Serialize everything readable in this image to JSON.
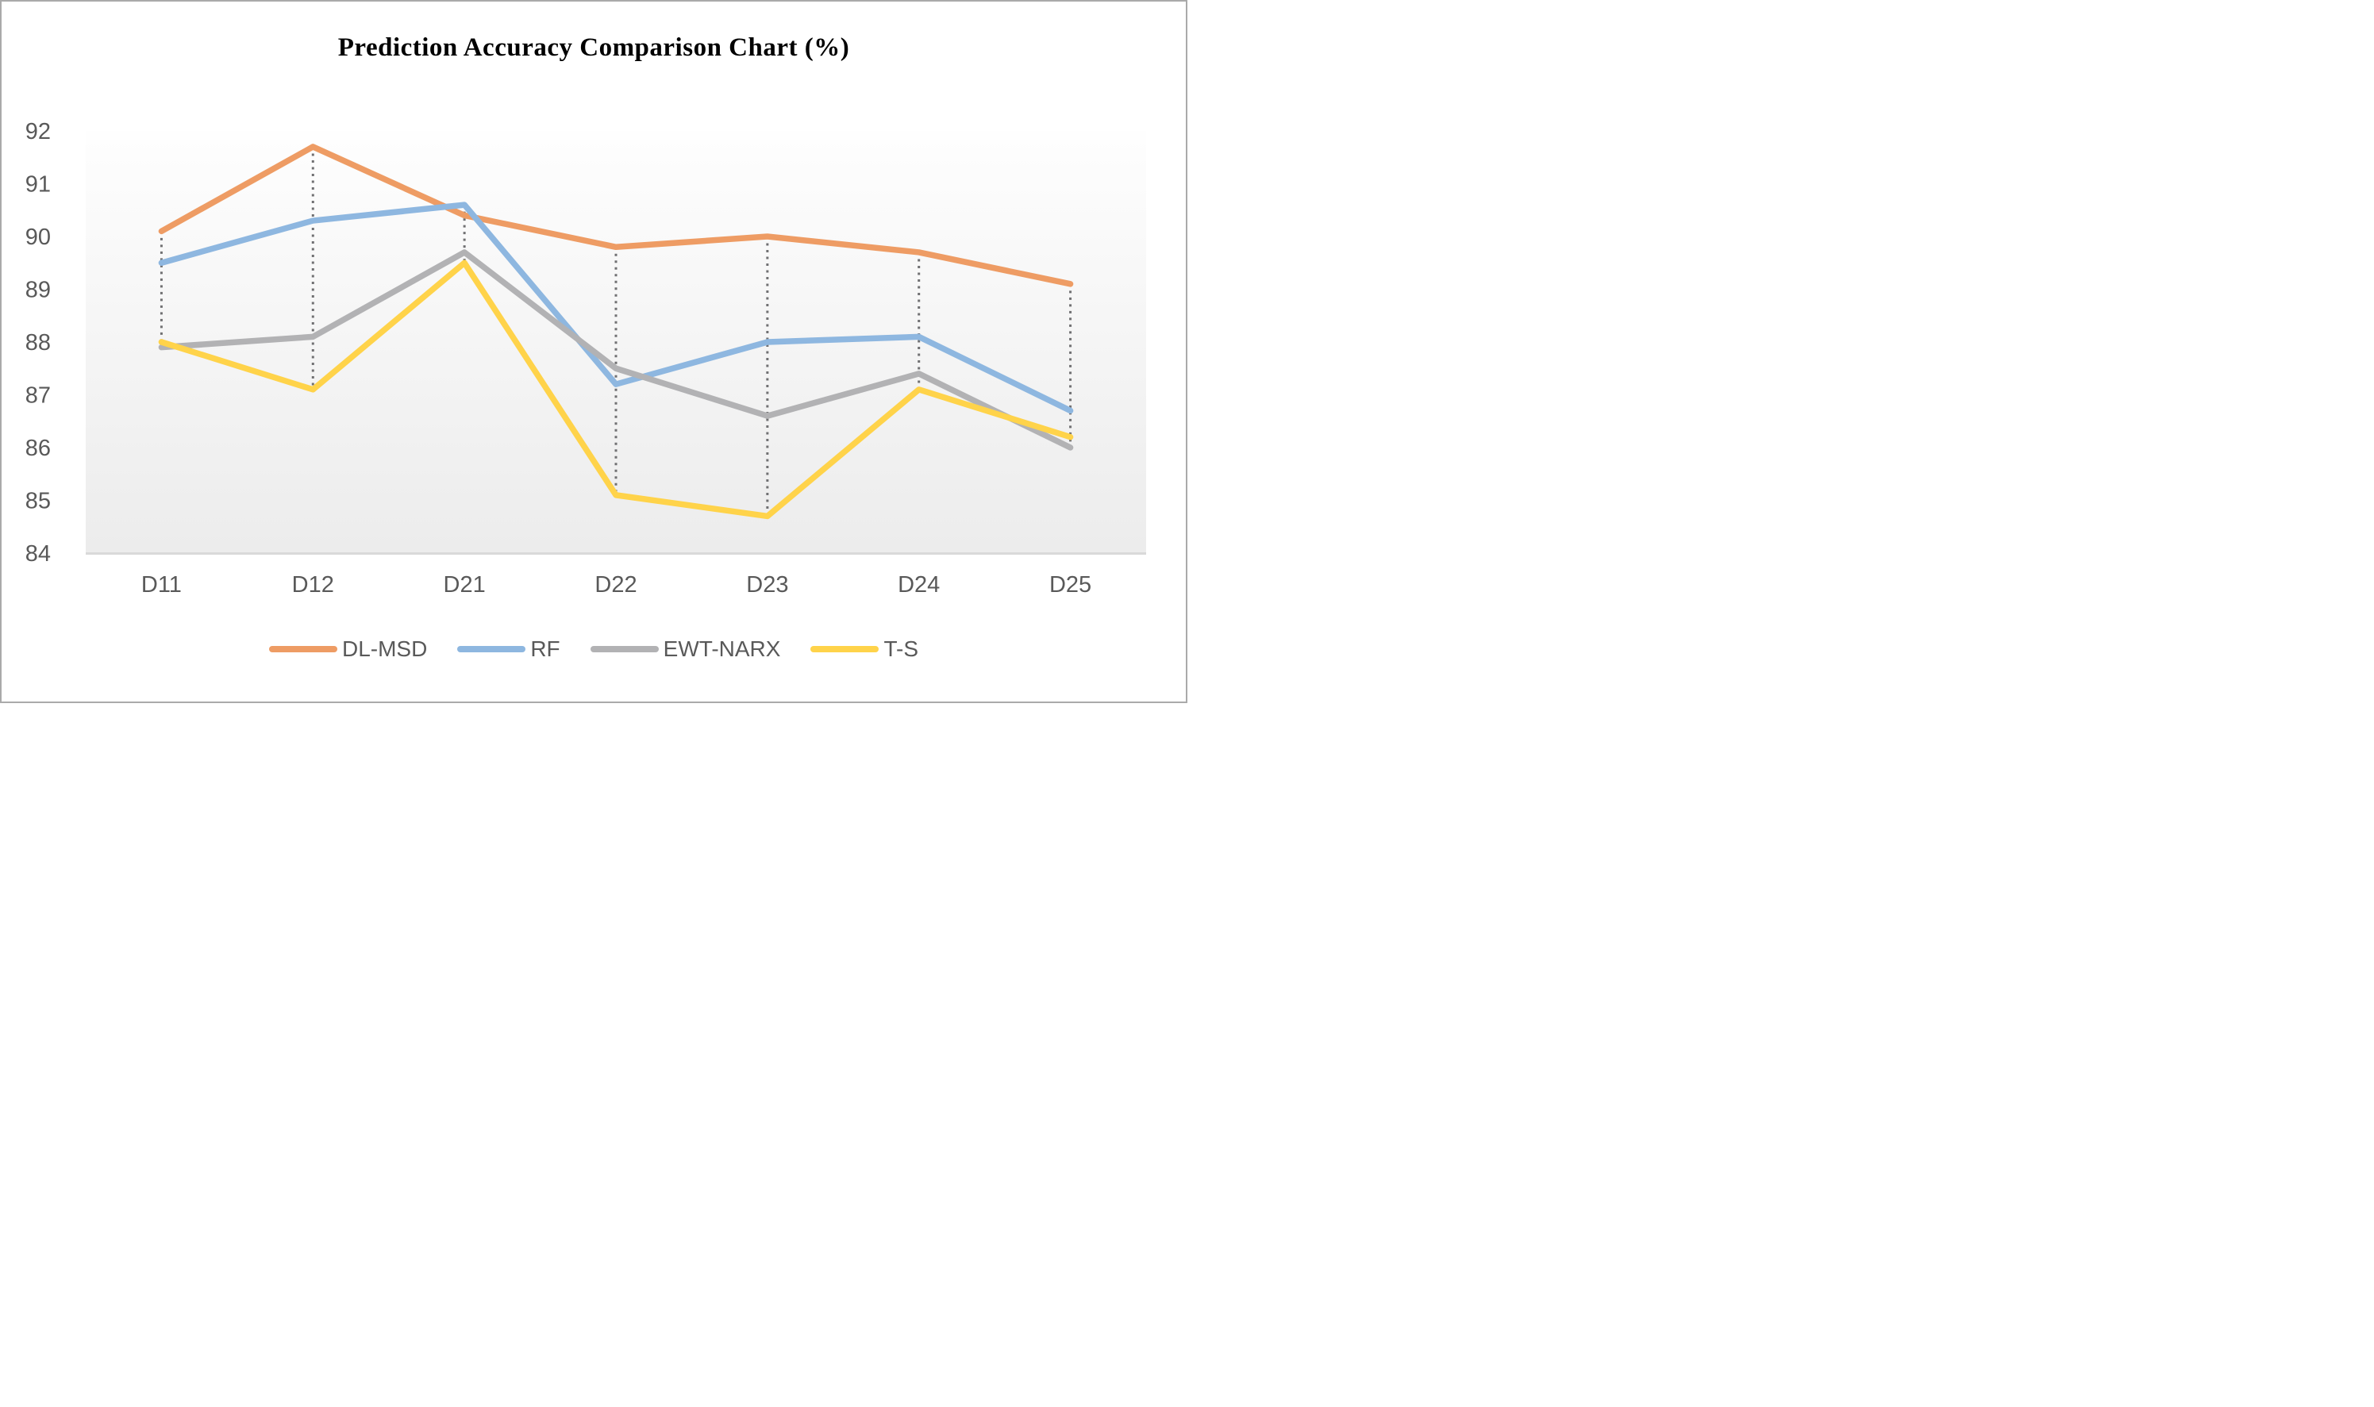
{
  "title": "Prediction Accuracy Comparison Chart (%)",
  "chart_data": {
    "type": "line",
    "title": "Prediction Accuracy Comparison Chart (%)",
    "categories": [
      "D11",
      "D12",
      "D21",
      "D22",
      "D23",
      "D24",
      "D25"
    ],
    "series": [
      {
        "name": "DL-MSD",
        "color": "#EE9C64",
        "values": [
          90.1,
          91.7,
          90.4,
          89.8,
          90.0,
          89.7,
          89.1
        ]
      },
      {
        "name": "RF",
        "color": "#8EB7E0",
        "values": [
          89.5,
          90.3,
          90.6,
          87.2,
          88.0,
          88.1,
          86.7
        ]
      },
      {
        "name": "EWT-NARX",
        "color": "#B2B2B4",
        "values": [
          87.9,
          88.1,
          89.7,
          87.5,
          86.6,
          87.4,
          86.0
        ]
      },
      {
        "name": "T-S",
        "color": "#FFD34A",
        "values": [
          88.0,
          87.1,
          89.5,
          85.1,
          84.7,
          87.1,
          86.2
        ]
      }
    ],
    "ylim": [
      84,
      92
    ],
    "yticks": [
      92,
      91,
      90,
      89,
      88,
      87,
      86,
      85,
      84
    ],
    "grid": "none",
    "high_low_lines": true,
    "legend_position": "bottom",
    "styles": {
      "high_low_color": "#707072",
      "axis_line_color": "#D9D9D9",
      "tick_text_color": "#595959",
      "plot_bg_top": "#FEFEFE",
      "plot_bg_bottom": "#ECECEC",
      "frame_border_color": "#AAAAAA"
    }
  }
}
